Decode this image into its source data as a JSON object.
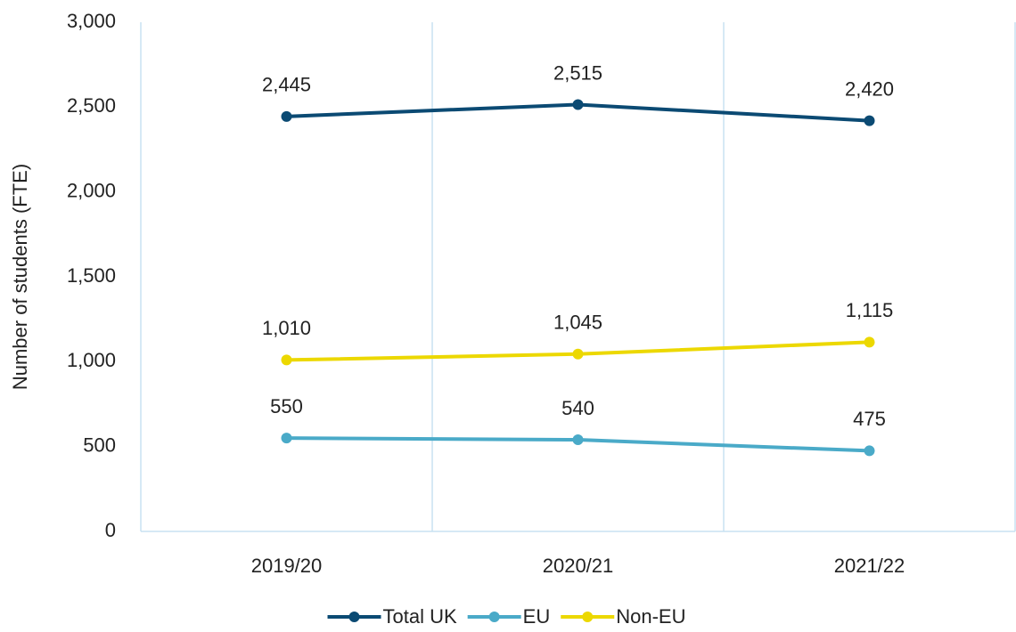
{
  "chart_data": {
    "type": "line",
    "y_label": "Number of students (FTE)",
    "categories": [
      "2019/20",
      "2020/21",
      "2021/22"
    ],
    "series": [
      {
        "name": "Total UK",
        "color": "#0b4a73",
        "values": [
          2445,
          2515,
          2420
        ],
        "value_labels": [
          "2,445",
          "2,515",
          "2,420"
        ]
      },
      {
        "name": "EU",
        "color": "#4aaac8",
        "values": [
          550,
          540,
          475
        ],
        "value_labels": [
          "550",
          "540",
          "475"
        ]
      },
      {
        "name": "Non-EU",
        "color": "#ecd800",
        "values": [
          1010,
          1045,
          1115
        ],
        "value_labels": [
          "1,010",
          "1,045",
          "1,115"
        ]
      }
    ],
    "ylim": [
      0,
      3000
    ],
    "yticks": [
      0,
      500,
      {
        "value": 1000,
        "label": "1,000"
      },
      {
        "value": 1500,
        "label": "1,500"
      },
      {
        "value": 2000,
        "label": "2,000"
      },
      {
        "value": 2500,
        "label": "2,500"
      },
      {
        "value": 3000,
        "label": "3,000"
      }
    ],
    "legend": "bottom"
  }
}
